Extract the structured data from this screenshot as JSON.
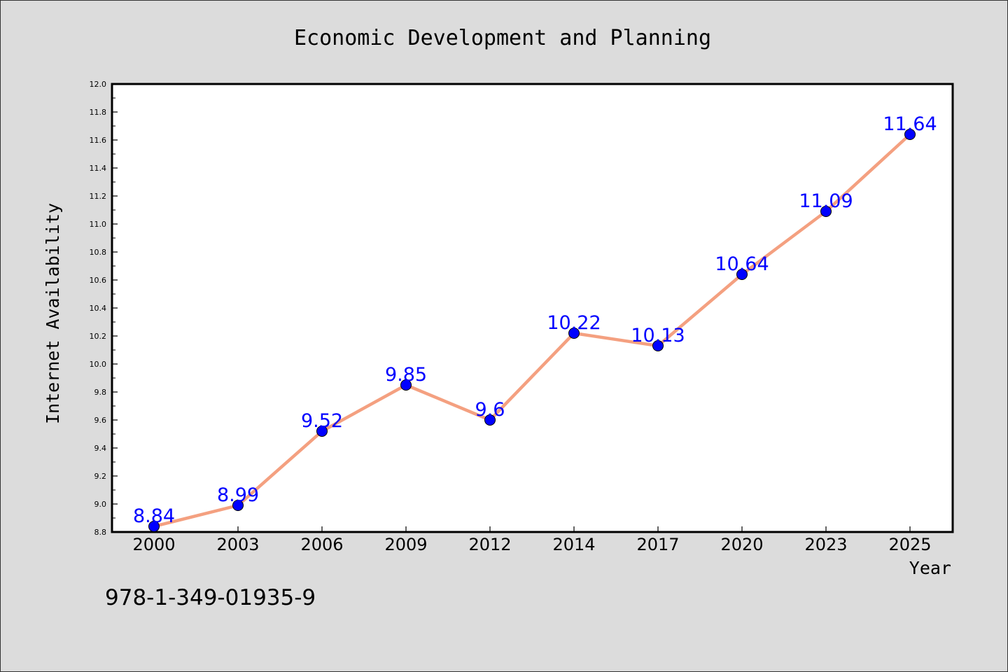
{
  "chart_data": {
    "type": "line",
    "title": "Economic Development and Planning",
    "xlabel": "Year",
    "ylabel": "Internet Availability",
    "categories": [
      "2000",
      "2003",
      "2006",
      "2009",
      "2012",
      "2014",
      "2017",
      "2020",
      "2023",
      "2025"
    ],
    "values": [
      8.84,
      8.99,
      9.52,
      9.85,
      9.6,
      10.22,
      10.13,
      10.64,
      11.09,
      11.64
    ],
    "data_labels": [
      "8.84",
      "8.99",
      "9.52",
      "9.85",
      "9.6",
      "10.22",
      "10.13",
      "10.64",
      "11.09",
      "11.64"
    ],
    "ylim": [
      8.8,
      12.0
    ],
    "yticks": [
      "8.8",
      "9.0",
      "9.2",
      "9.4",
      "9.6",
      "9.8",
      "10.0",
      "10.2",
      "10.4",
      "10.6",
      "10.8",
      "11.0",
      "11.2",
      "11.4",
      "11.6",
      "11.8",
      "12.0"
    ],
    "grid": false,
    "line_color": "#f4a080",
    "marker_color": "#0000ff",
    "label_color": "#0000ff",
    "background": "#dcdcdc",
    "plot_background": "#ffffff"
  },
  "annotation": "978-1-349-01935-9"
}
